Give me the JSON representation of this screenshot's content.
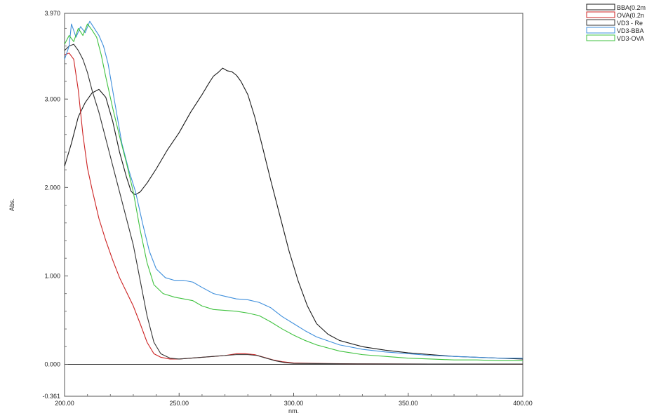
{
  "chart_data": {
    "type": "line",
    "title": "",
    "xlabel": "nm.",
    "ylabel": "Abs.",
    "xlim": [
      200,
      400
    ],
    "ylim": [
      -0.361,
      3.97
    ],
    "x_ticks": [
      200,
      250,
      300,
      350,
      400
    ],
    "x_tick_labels": [
      "200.00",
      "250.00",
      "300.00",
      "350.00",
      "400.00"
    ],
    "y_ticks": [
      -0.361,
      0,
      1,
      2,
      3,
      3.97
    ],
    "y_tick_labels": [
      "-0.361",
      "0.000",
      "1.000",
      "2.000",
      "3.000",
      "3.970"
    ],
    "grid": false,
    "baseline": 0,
    "legend_position": "top-right",
    "series": [
      {
        "name": "BBA(0.2m",
        "color": "#1a1a1a",
        "points": [
          [
            200,
            2.24
          ],
          [
            203,
            2.5
          ],
          [
            206,
            2.8
          ],
          [
            209,
            2.96
          ],
          [
            212,
            3.07
          ],
          [
            215,
            3.11
          ],
          [
            218,
            3.02
          ],
          [
            221,
            2.75
          ],
          [
            224,
            2.4
          ],
          [
            227,
            2.12
          ],
          [
            229,
            1.96
          ],
          [
            230,
            1.93
          ],
          [
            231,
            1.92
          ],
          [
            233,
            1.95
          ],
          [
            236,
            2.05
          ],
          [
            240,
            2.21
          ],
          [
            245,
            2.43
          ],
          [
            250,
            2.62
          ],
          [
            255,
            2.85
          ],
          [
            260,
            3.05
          ],
          [
            263,
            3.18
          ],
          [
            265,
            3.26
          ],
          [
            267,
            3.3
          ],
          [
            269,
            3.35
          ],
          [
            271,
            3.32
          ],
          [
            273,
            3.31
          ],
          [
            275,
            3.27
          ],
          [
            277,
            3.2
          ],
          [
            280,
            3.05
          ],
          [
            283,
            2.8
          ],
          [
            286,
            2.5
          ],
          [
            290,
            2.08
          ],
          [
            294,
            1.68
          ],
          [
            298,
            1.28
          ],
          [
            302,
            0.94
          ],
          [
            306,
            0.66
          ],
          [
            310,
            0.46
          ],
          [
            315,
            0.34
          ],
          [
            320,
            0.27
          ],
          [
            330,
            0.2
          ],
          [
            340,
            0.16
          ],
          [
            350,
            0.13
          ],
          [
            360,
            0.11
          ],
          [
            370,
            0.09
          ],
          [
            380,
            0.08
          ],
          [
            390,
            0.07
          ],
          [
            400,
            0.06
          ]
        ]
      },
      {
        "name": "OVA(0.2n",
        "color": "#cc2222",
        "points": [
          [
            200,
            3.5
          ],
          [
            202,
            3.52
          ],
          [
            204,
            3.45
          ],
          [
            206,
            3.1
          ],
          [
            208,
            2.6
          ],
          [
            210,
            2.22
          ],
          [
            212,
            1.98
          ],
          [
            215,
            1.65
          ],
          [
            218,
            1.4
          ],
          [
            221,
            1.18
          ],
          [
            224,
            0.98
          ],
          [
            227,
            0.82
          ],
          [
            230,
            0.66
          ],
          [
            233,
            0.46
          ],
          [
            236,
            0.25
          ],
          [
            239,
            0.12
          ],
          [
            242,
            0.08
          ],
          [
            246,
            0.06
          ],
          [
            250,
            0.06
          ],
          [
            255,
            0.07
          ],
          [
            260,
            0.08
          ],
          [
            265,
            0.09
          ],
          [
            270,
            0.1
          ],
          [
            275,
            0.12
          ],
          [
            279,
            0.12
          ],
          [
            283,
            0.11
          ],
          [
            287,
            0.08
          ],
          [
            291,
            0.05
          ],
          [
            295,
            0.03
          ],
          [
            300,
            0.015
          ],
          [
            310,
            0.01
          ],
          [
            330,
            0.005
          ],
          [
            360,
            0.004
          ],
          [
            400,
            0.003
          ]
        ]
      },
      {
        "name": "VD3 - Re",
        "color": "#333333",
        "points": [
          [
            200,
            3.55
          ],
          [
            202,
            3.6
          ],
          [
            204,
            3.62
          ],
          [
            206,
            3.55
          ],
          [
            208,
            3.45
          ],
          [
            210,
            3.3
          ],
          [
            212,
            3.1
          ],
          [
            215,
            2.85
          ],
          [
            218,
            2.55
          ],
          [
            221,
            2.25
          ],
          [
            224,
            1.95
          ],
          [
            227,
            1.65
          ],
          [
            230,
            1.35
          ],
          [
            233,
            0.95
          ],
          [
            236,
            0.55
          ],
          [
            239,
            0.25
          ],
          [
            242,
            0.12
          ],
          [
            246,
            0.07
          ],
          [
            250,
            0.06
          ],
          [
            255,
            0.07
          ],
          [
            260,
            0.08
          ],
          [
            265,
            0.09
          ],
          [
            270,
            0.1
          ],
          [
            275,
            0.11
          ],
          [
            280,
            0.11
          ],
          [
            284,
            0.1
          ],
          [
            288,
            0.07
          ],
          [
            292,
            0.04
          ],
          [
            296,
            0.02
          ],
          [
            300,
            0.01
          ],
          [
            320,
            0.006
          ],
          [
            360,
            0.004
          ],
          [
            400,
            0.003
          ]
        ]
      },
      {
        "name": "VD3-BBA",
        "color": "#3f8fdc",
        "points": [
          [
            200,
            3.45
          ],
          [
            202,
            3.6
          ],
          [
            203,
            3.85
          ],
          [
            205,
            3.7
          ],
          [
            207,
            3.82
          ],
          [
            209,
            3.75
          ],
          [
            211,
            3.88
          ],
          [
            213,
            3.8
          ],
          [
            215,
            3.72
          ],
          [
            217,
            3.6
          ],
          [
            219,
            3.4
          ],
          [
            221,
            3.1
          ],
          [
            223,
            2.8
          ],
          [
            225,
            2.5
          ],
          [
            228,
            2.2
          ],
          [
            231,
            1.95
          ],
          [
            234,
            1.6
          ],
          [
            237,
            1.28
          ],
          [
            240,
            1.08
          ],
          [
            244,
            0.98
          ],
          [
            248,
            0.95
          ],
          [
            252,
            0.95
          ],
          [
            256,
            0.93
          ],
          [
            260,
            0.87
          ],
          [
            265,
            0.8
          ],
          [
            270,
            0.77
          ],
          [
            275,
            0.74
          ],
          [
            280,
            0.73
          ],
          [
            285,
            0.7
          ],
          [
            290,
            0.64
          ],
          [
            295,
            0.54
          ],
          [
            300,
            0.46
          ],
          [
            305,
            0.38
          ],
          [
            310,
            0.31
          ],
          [
            320,
            0.22
          ],
          [
            330,
            0.17
          ],
          [
            340,
            0.14
          ],
          [
            350,
            0.12
          ],
          [
            360,
            0.1
          ],
          [
            370,
            0.09
          ],
          [
            380,
            0.08
          ],
          [
            390,
            0.07
          ],
          [
            400,
            0.07
          ]
        ]
      },
      {
        "name": "VD3-OVA",
        "color": "#3fc23f",
        "points": [
          [
            200,
            3.62
          ],
          [
            202,
            3.72
          ],
          [
            204,
            3.65
          ],
          [
            206,
            3.8
          ],
          [
            208,
            3.72
          ],
          [
            210,
            3.85
          ],
          [
            212,
            3.78
          ],
          [
            214,
            3.7
          ],
          [
            216,
            3.5
          ],
          [
            218,
            3.25
          ],
          [
            221,
            2.9
          ],
          [
            224,
            2.58
          ],
          [
            227,
            2.28
          ],
          [
            230,
            1.95
          ],
          [
            233,
            1.52
          ],
          [
            236,
            1.15
          ],
          [
            239,
            0.9
          ],
          [
            243,
            0.8
          ],
          [
            248,
            0.76
          ],
          [
            252,
            0.74
          ],
          [
            256,
            0.72
          ],
          [
            260,
            0.66
          ],
          [
            265,
            0.62
          ],
          [
            270,
            0.61
          ],
          [
            275,
            0.6
          ],
          [
            280,
            0.58
          ],
          [
            285,
            0.55
          ],
          [
            290,
            0.48
          ],
          [
            295,
            0.4
          ],
          [
            300,
            0.33
          ],
          [
            305,
            0.27
          ],
          [
            310,
            0.22
          ],
          [
            320,
            0.15
          ],
          [
            330,
            0.11
          ],
          [
            340,
            0.09
          ],
          [
            350,
            0.07
          ],
          [
            360,
            0.06
          ],
          [
            370,
            0.05
          ],
          [
            380,
            0.05
          ],
          [
            390,
            0.04
          ],
          [
            400,
            0.04
          ]
        ]
      }
    ]
  }
}
